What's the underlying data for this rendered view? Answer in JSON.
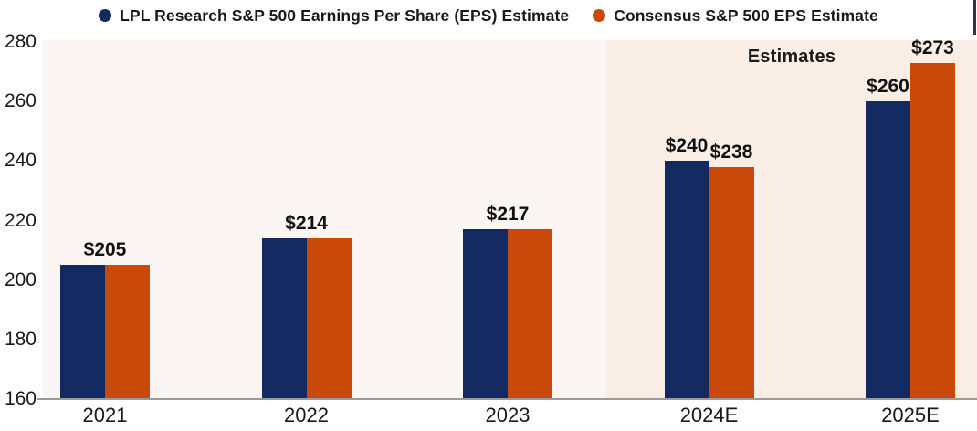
{
  "legend": {
    "items": [
      {
        "label": "LPL Research S&P 500 Earnings Per Share (EPS) Estimate",
        "icon": "circle",
        "color": "#122a60"
      },
      {
        "label": "Consensus S&P 500 EPS Estimate",
        "icon": "circle",
        "color": "#c94a08"
      }
    ]
  },
  "annotation": {
    "estimates_label": "Estimates"
  },
  "colors": {
    "lpl_navy": "#122a60",
    "consensus_orange": "#c94a08",
    "plot_background": "#fbf6f3",
    "estimates_background": "#f8eee6",
    "axis_line": "#9a9a9a",
    "text": "#1a1a1a"
  },
  "chart_data": {
    "type": "bar",
    "title": "",
    "xlabel": "",
    "ylabel": "",
    "categories": [
      "2021",
      "2022",
      "2023",
      "2024E",
      "2025E"
    ],
    "series": [
      {
        "name": "LPL Research S&P 500 Earnings Per Share (EPS) Estimate",
        "color": "#122a60",
        "values": [
          205,
          214,
          217,
          240,
          260
        ]
      },
      {
        "name": "Consensus S&P 500 EPS Estimate",
        "color": "#c94a08",
        "values": [
          205,
          214,
          217,
          238,
          273
        ]
      }
    ],
    "bar_labels": [
      {
        "shared": "$205"
      },
      {
        "shared": "$214"
      },
      {
        "shared": "$217"
      },
      {
        "lpl": "$240",
        "consensus": "$238"
      },
      {
        "lpl": "$260",
        "consensus": "$273"
      }
    ],
    "ylim": [
      160,
      280
    ],
    "ytick_step": 20,
    "yticks": [
      "280",
      "260",
      "240",
      "220",
      "200",
      "180",
      "160"
    ],
    "grid": false,
    "legend_position": "top",
    "estimates_region": {
      "label": "Estimates",
      "start_category": "2024E"
    }
  }
}
